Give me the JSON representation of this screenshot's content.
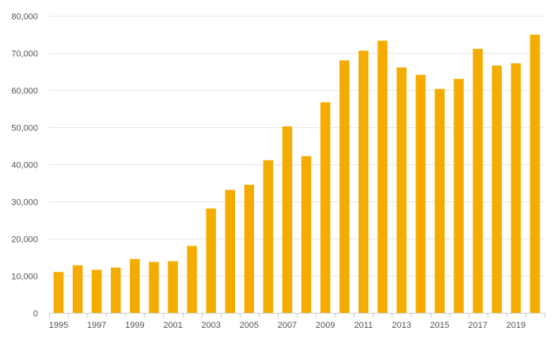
{
  "chart_data": {
    "type": "bar",
    "title": "",
    "xlabel": "",
    "ylabel": "",
    "categories": [
      "1995",
      "1996",
      "1997",
      "1998",
      "1999",
      "2000",
      "2001",
      "2002",
      "2003",
      "2004",
      "2005",
      "2006",
      "2007",
      "2008",
      "2009",
      "2010",
      "2011",
      "2012",
      "2013",
      "2014",
      "2015",
      "2016",
      "2017",
      "2018",
      "2019",
      "2020"
    ],
    "x_tick_labels": [
      "1995",
      "",
      "1997",
      "",
      "1999",
      "",
      "2001",
      "",
      "2003",
      "",
      "2005",
      "",
      "2007",
      "",
      "2009",
      "",
      "2011",
      "",
      "2013",
      "",
      "2015",
      "",
      "2017",
      "",
      "2019",
      ""
    ],
    "values": [
      11000,
      12800,
      11600,
      12200,
      14500,
      13700,
      13900,
      18000,
      28100,
      33100,
      34500,
      41100,
      50200,
      42200,
      56700,
      68000,
      70600,
      73300,
      66100,
      64100,
      60300,
      63000,
      71100,
      66600,
      67200,
      74900
    ],
    "ylim": [
      0,
      80000
    ],
    "y_ticks": [
      0,
      10000,
      20000,
      30000,
      40000,
      50000,
      60000,
      70000,
      80000
    ],
    "y_tick_labels": [
      "0",
      "10,000",
      "20,000",
      "30,000",
      "40,000",
      "50,000",
      "60,000",
      "70,000",
      "80,000"
    ],
    "grid": true,
    "legend": "none",
    "colors": {
      "bar": "#F5AC00",
      "grid": "#E6E6E6",
      "axis": "#CCCCCC",
      "text": "#555555"
    }
  }
}
